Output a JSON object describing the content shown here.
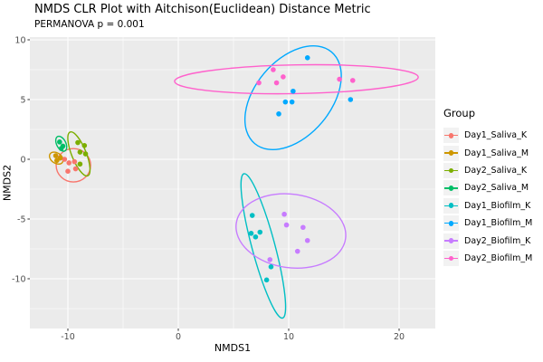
{
  "page": {
    "background": "#FFFFFF"
  },
  "colors": {
    "panel_bg": "#EBEBEB",
    "gridline": "#FFFFFF",
    "legend_key_bg": "#F2F2F2",
    "tick_label": "#4D4D4D",
    "tick_mark": "#333333",
    "text": "#000000"
  },
  "chart_data": {
    "type": "scatter",
    "title": "NMDS CLR Plot with Aitchison(Euclidean) Distance Metric",
    "subtitle": "PERMANOVA p = 0.001",
    "xlabel": "NMDS1",
    "ylabel": "NMDS2",
    "xlim": [
      -13.4,
      23.3
    ],
    "ylim": [
      -14.2,
      10.2
    ],
    "x_ticks": [
      -10,
      0,
      10,
      20
    ],
    "x_minor_ticks": [
      -5,
      5,
      15
    ],
    "y_ticks": [
      10,
      5,
      0,
      -5,
      -10
    ],
    "y_minor_ticks": [
      7.5,
      2.5,
      -2.5,
      -7.5,
      -12.5
    ],
    "grid": true,
    "legend_title": "Group",
    "legend_position": "right",
    "series": [
      {
        "name": "Day1_Saliva_K",
        "color": "#F8766D",
        "points": [
          [
            -10.3,
            0.0
          ],
          [
            -9.9,
            -0.3
          ],
          [
            -9.4,
            -0.2
          ],
          [
            -10.0,
            -1.0
          ],
          [
            -9.3,
            -0.8
          ]
        ],
        "ellipse": {
          "cx": -9.5,
          "cy": -0.5,
          "a": 1.5,
          "b": 1.45,
          "tilt_deg": 0
        }
      },
      {
        "name": "Day1_Saliva_M",
        "color": "#CD9600",
        "points": [
          [
            -11.1,
            0.3
          ],
          [
            -10.7,
            0.1
          ],
          [
            -11.0,
            -0.1
          ]
        ],
        "ellipse": {
          "cx": -11.05,
          "cy": 0.1,
          "a": 0.65,
          "b": 0.45,
          "tilt_deg": 35
        }
      },
      {
        "name": "Day2_Saliva_K",
        "color": "#7CAE00",
        "points": [
          [
            -9.1,
            1.4
          ],
          [
            -8.5,
            1.15
          ],
          [
            -8.9,
            0.6
          ],
          [
            -8.4,
            0.45
          ],
          [
            -8.9,
            -0.4
          ]
        ],
        "ellipse": {
          "cx": -9.0,
          "cy": 0.45,
          "a": 2.05,
          "b": 0.63,
          "tilt_deg": 68
        }
      },
      {
        "name": "Day2_Saliva_M",
        "color": "#00BE67",
        "points": [
          [
            -10.75,
            1.45
          ],
          [
            -10.45,
            1.1
          ],
          [
            -10.6,
            0.9
          ]
        ],
        "ellipse": {
          "cx": -10.6,
          "cy": 1.3,
          "a": 0.7,
          "b": 0.4,
          "tilt_deg": 63
        }
      },
      {
        "name": "Day1_Biofilm_K",
        "color": "#00BFC4",
        "points": [
          [
            6.7,
            -4.7
          ],
          [
            6.6,
            -6.2
          ],
          [
            7.4,
            -6.1
          ],
          [
            7.0,
            -6.5
          ],
          [
            8.4,
            -9.0
          ],
          [
            8.0,
            -10.1
          ]
        ],
        "ellipse": {
          "cx": 7.7,
          "cy": -7.25,
          "a": 6.5,
          "b": 1.0,
          "tilt_deg": 75
        }
      },
      {
        "name": "Day1_Biofilm_M",
        "color": "#00A9FF",
        "points": [
          [
            11.7,
            8.5
          ],
          [
            10.4,
            5.7
          ],
          [
            9.7,
            4.8
          ],
          [
            10.3,
            4.8
          ],
          [
            9.1,
            3.8
          ],
          [
            15.6,
            5.0
          ]
        ],
        "ellipse": {
          "cx": 10.4,
          "cy": 5.15,
          "a": 5.2,
          "b": 3.3,
          "tilt_deg": -50
        }
      },
      {
        "name": "Day2_Biofilm_K",
        "color": "#C77CFF",
        "points": [
          [
            9.6,
            -4.6
          ],
          [
            9.8,
            -5.5
          ],
          [
            11.3,
            -5.7
          ],
          [
            11.7,
            -6.8
          ],
          [
            10.8,
            -7.7
          ],
          [
            8.3,
            -8.4
          ]
        ],
        "ellipse": {
          "cx": 10.2,
          "cy": -6.0,
          "a": 4.8,
          "b": 3.2,
          "tilt_deg": 8
        }
      },
      {
        "name": "Day2_Biofilm_M",
        "color": "#FF61CC",
        "points": [
          [
            8.6,
            7.5
          ],
          [
            7.3,
            6.4
          ],
          [
            8.9,
            6.4
          ],
          [
            9.5,
            6.9
          ],
          [
            14.6,
            6.7
          ],
          [
            15.8,
            6.6
          ]
        ],
        "ellipse": {
          "cx": 10.7,
          "cy": 6.7,
          "a": 10.6,
          "b": 1.25,
          "tilt_deg": -1
        }
      }
    ]
  }
}
